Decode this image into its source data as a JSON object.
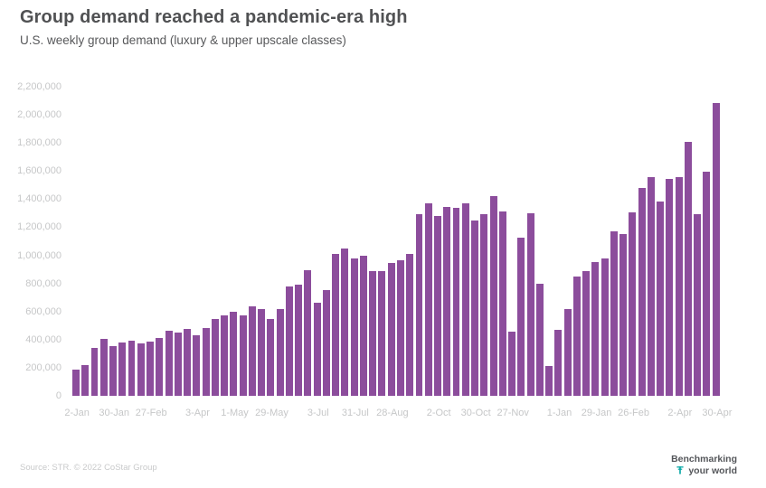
{
  "page": {
    "background": "#ffffff"
  },
  "header": {
    "title": "Group demand reached a pandemic-era high",
    "subtitle": "U.S. weekly group demand (luxury & upper upscale classes)"
  },
  "footer": {
    "source": "Source: STR. © 2022 CoStar Group",
    "logo_line1": "Benchmarking",
    "logo_line2": "your world",
    "logo_mark_color": "#00a5a3"
  },
  "chart_data": {
    "type": "bar",
    "title": "Group demand reached a pandemic-era high",
    "subtitle": "U.S. weekly group demand (luxury & upper upscale classes)",
    "xlabel": "",
    "ylabel": "",
    "ylim": [
      0,
      2200000
    ],
    "grid": false,
    "legend": "none",
    "bar_color": "#8c4d9c",
    "tick_color": "#c6c7c8",
    "y_ticks": [
      "0",
      "200,000",
      "400,000",
      "600,000",
      "800,000",
      "1,000,000",
      "1,200,000",
      "1,400,000",
      "1,600,000",
      "1,800,000",
      "2,000,000",
      "2,200,000"
    ],
    "x_ticks": [
      {
        "index": 0,
        "label": "2-Jan"
      },
      {
        "index": 4,
        "label": "30-Jan"
      },
      {
        "index": 8,
        "label": "27-Feb"
      },
      {
        "index": 13,
        "label": "3-Apr"
      },
      {
        "index": 17,
        "label": "1-May"
      },
      {
        "index": 21,
        "label": "29-May"
      },
      {
        "index": 26,
        "label": "3-Jul"
      },
      {
        "index": 30,
        "label": "31-Jul"
      },
      {
        "index": 34,
        "label": "28-Aug"
      },
      {
        "index": 39,
        "label": "2-Oct"
      },
      {
        "index": 43,
        "label": "30-Oct"
      },
      {
        "index": 47,
        "label": "27-Nov"
      },
      {
        "index": 52,
        "label": "1-Jan"
      },
      {
        "index": 56,
        "label": "29-Jan"
      },
      {
        "index": 60,
        "label": "26-Feb"
      },
      {
        "index": 65,
        "label": "2-Apr"
      },
      {
        "index": 69,
        "label": "30-Apr"
      }
    ],
    "values": [
      185000,
      220000,
      340000,
      405000,
      355000,
      380000,
      395000,
      375000,
      385000,
      410000,
      465000,
      450000,
      475000,
      430000,
      485000,
      550000,
      570000,
      600000,
      575000,
      640000,
      615000,
      550000,
      615000,
      780000,
      790000,
      895000,
      660000,
      755000,
      1010000,
      1050000,
      975000,
      1000000,
      890000,
      890000,
      945000,
      965000,
      1010000,
      1295000,
      1370000,
      1280000,
      1345000,
      1340000,
      1370000,
      1250000,
      1295000,
      1420000,
      1315000,
      455000,
      1125000,
      1300000,
      800000,
      210000,
      470000,
      615000,
      850000,
      890000,
      955000,
      975000,
      1170000,
      1150000,
      1305000,
      1480000,
      1560000,
      1385000,
      1545000,
      1555000,
      1805000,
      1290000,
      1595000,
      2085000
    ]
  }
}
